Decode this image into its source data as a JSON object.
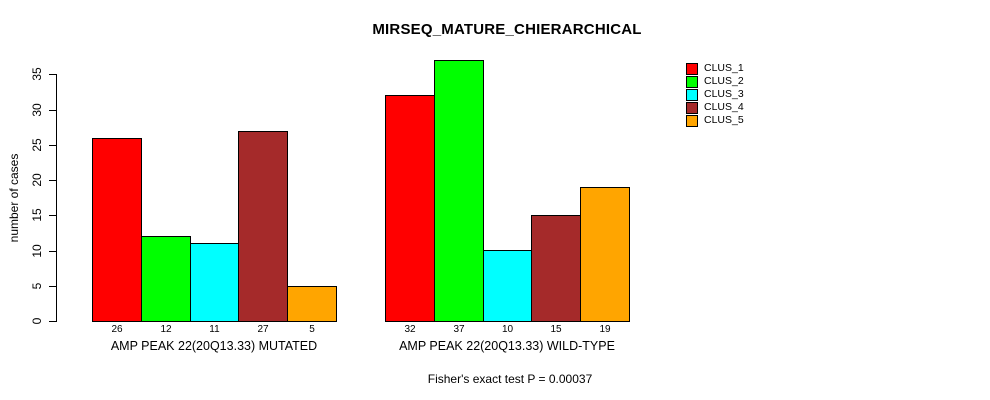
{
  "title": "MIRSEQ_MATURE_CHIERARCHICAL",
  "caption": "Fisher's exact test P = 0.00037",
  "chart_data": {
    "type": "bar",
    "title": "MIRSEQ_MATURE_CHIERARCHICAL",
    "xlabel": "",
    "ylabel": "number of cases",
    "ylim": [
      0,
      37
    ],
    "yticks": [
      0,
      5,
      10,
      15,
      20,
      25,
      30,
      35
    ],
    "grid": false,
    "legend_position": "top-right",
    "bar_value_labels": true,
    "categories": [
      "AMP PEAK 22(20Q13.33) MUTATED",
      "AMP PEAK 22(20Q13.33) WILD-TYPE"
    ],
    "series": [
      {
        "name": "CLUS_1",
        "color": "#FF0000",
        "values": [
          26,
          32
        ]
      },
      {
        "name": "CLUS_2",
        "color": "#00FF00",
        "values": [
          12,
          37
        ]
      },
      {
        "name": "CLUS_3",
        "color": "#00FFFF",
        "values": [
          11,
          10
        ]
      },
      {
        "name": "CLUS_4",
        "color": "#A52A2A",
        "values": [
          27,
          15
        ]
      },
      {
        "name": "CLUS_5",
        "color": "#FFA500",
        "values": [
          5,
          19
        ]
      }
    ],
    "annotation": "Fisher's exact test P = 0.00037"
  }
}
